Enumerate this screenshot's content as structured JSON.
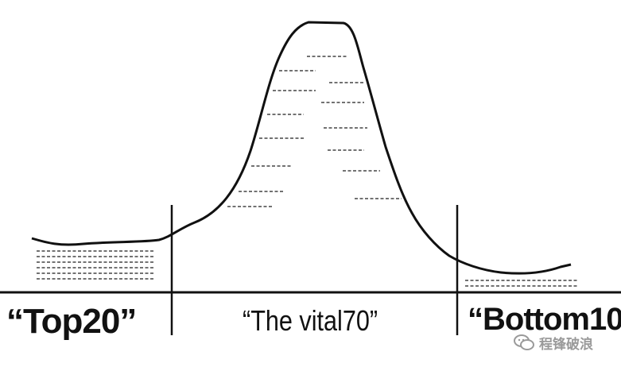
{
  "segments": {
    "left": "“Top20”",
    "middle": "“The vital70”",
    "right": "“Bottom10”"
  },
  "watermark": {
    "icon": "wechat-icon",
    "text": "程锋破浪"
  },
  "colors": {
    "ink": "#111111",
    "watermark": "#9a9a9a"
  }
}
